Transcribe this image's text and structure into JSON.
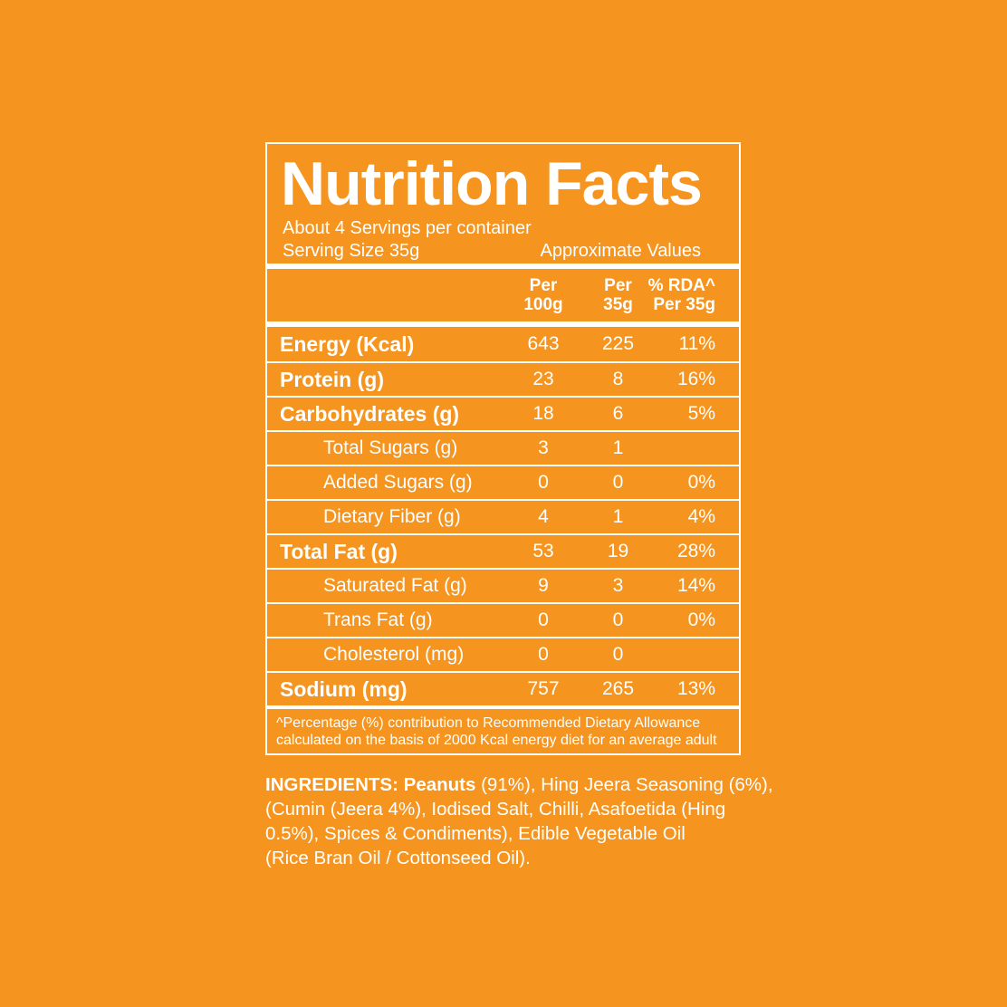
{
  "colors": {
    "background": "#F5941E",
    "foreground": "#FFFFFF"
  },
  "label": {
    "title": "Nutrition Facts",
    "servings_per_container": "About 4 Servings per container",
    "serving_size": "Serving Size 35g",
    "approximate_values": "Approximate Values",
    "columns": {
      "per_100g": {
        "line1": "Per",
        "line2": "100g"
      },
      "per_35g": {
        "line1": "Per",
        "line2": "35g"
      },
      "rda": {
        "line1": "% RDA^",
        "line2": "Per 35g"
      }
    },
    "rows": [
      {
        "label": "Energy (Kcal)",
        "indent": false,
        "per_100g": "643",
        "per_35g": "225",
        "rda": "11%"
      },
      {
        "label": "Protein (g)",
        "indent": false,
        "per_100g": "23",
        "per_35g": "8",
        "rda": "16%"
      },
      {
        "label": "Carbohydrates (g)",
        "indent": false,
        "per_100g": "18",
        "per_35g": "6",
        "rda": "5%"
      },
      {
        "label": "Total Sugars (g)",
        "indent": true,
        "per_100g": "3",
        "per_35g": "1",
        "rda": ""
      },
      {
        "label": "Added Sugars (g)",
        "indent": true,
        "per_100g": "0",
        "per_35g": "0",
        "rda": "0%"
      },
      {
        "label": "Dietary Fiber (g)",
        "indent": true,
        "per_100g": "4",
        "per_35g": "1",
        "rda": "4%"
      },
      {
        "label": "Total Fat (g)",
        "indent": false,
        "per_100g": "53",
        "per_35g": "19",
        "rda": "28%"
      },
      {
        "label": "Saturated Fat (g)",
        "indent": true,
        "per_100g": "9",
        "per_35g": "3",
        "rda": "14%"
      },
      {
        "label": "Trans Fat (g)",
        "indent": true,
        "per_100g": "0",
        "per_35g": "0",
        "rda": "0%"
      },
      {
        "label": "Cholesterol (mg)",
        "indent": true,
        "per_100g": "0",
        "per_35g": "0",
        "rda": ""
      },
      {
        "label": "Sodium (mg)",
        "indent": false,
        "per_100g": "757",
        "per_35g": "265",
        "rda": "13%"
      }
    ],
    "footnote_line1": "^Percentage (%) contribution to Recommended Dietary Allowance",
    "footnote_line2": "calculated on the basis of 2000 Kcal energy diet for an average adult"
  },
  "ingredients": {
    "heading": "INGREDIENTS:",
    "first_item": "Peanuts",
    "line1_rest": " (91%), Hing Jeera Seasoning (6%),",
    "line2": "(Cumin (Jeera 4%), Iodised Salt, Chilli, Asafoetida (Hing",
    "line3": "0.5%), Spices & Condiments), Edible Vegetable Oil",
    "line4": "(Rice Bran Oil / Cottonseed Oil)."
  }
}
